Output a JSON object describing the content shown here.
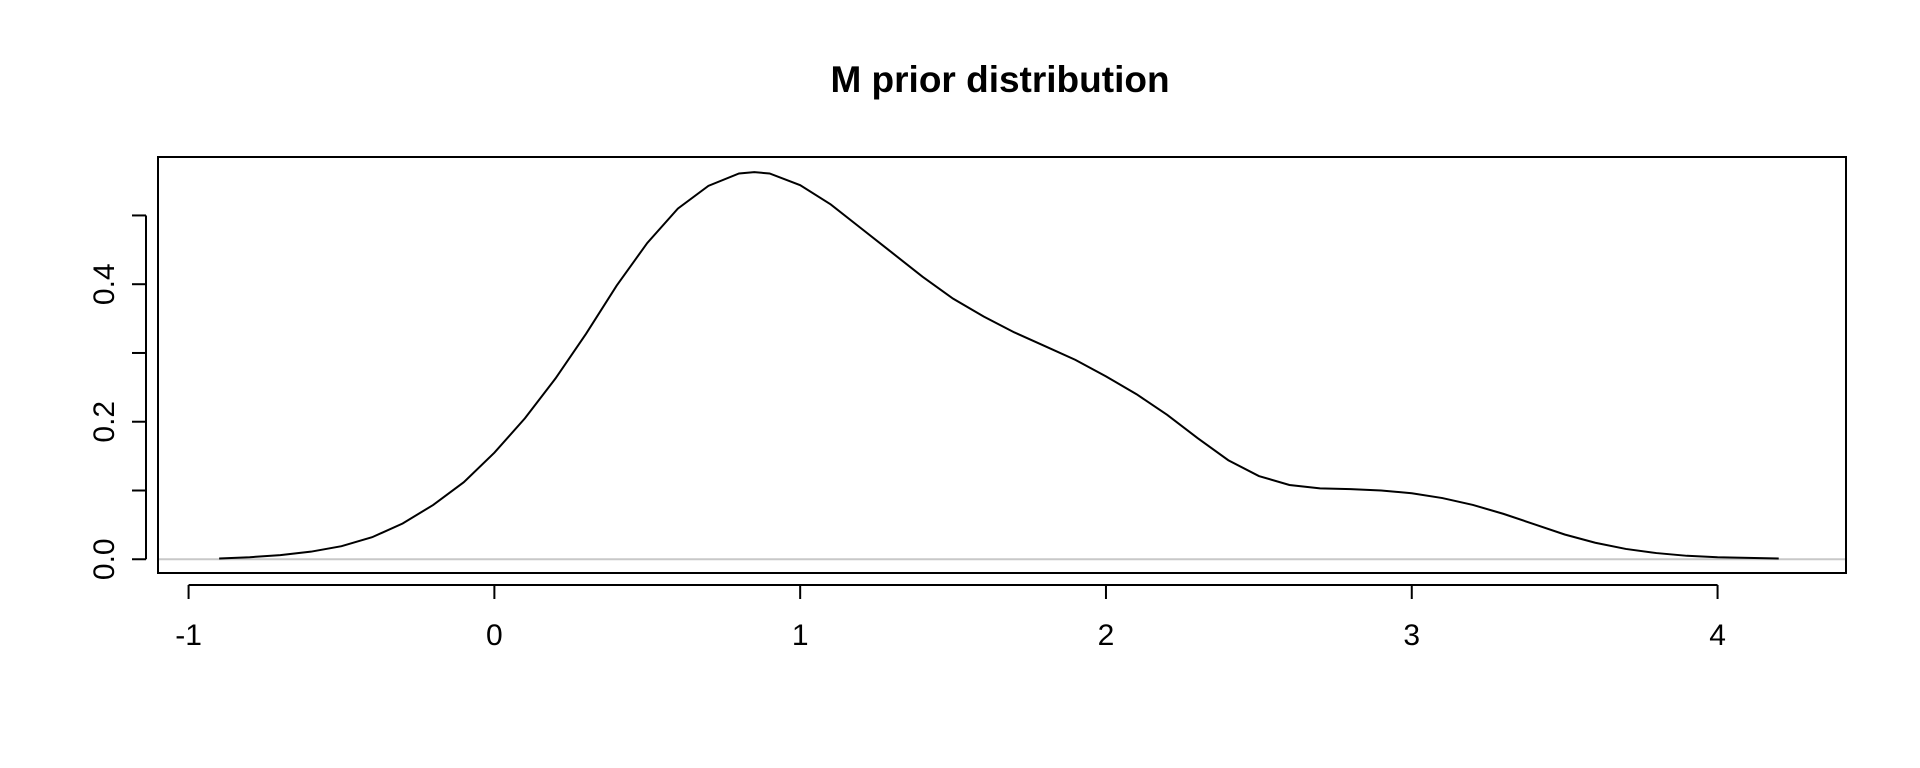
{
  "chart_data": {
    "type": "line",
    "title": "M prior distribution",
    "xlabel": "",
    "ylabel": "",
    "xlim": [
      -1.1,
      4.42
    ],
    "ylim": [
      -0.02,
      0.585
    ],
    "x_ticks": [
      -1,
      0,
      1,
      2,
      3,
      4
    ],
    "x_tick_labels": [
      "-1",
      "0",
      "1",
      "2",
      "3",
      "4"
    ],
    "y_ticks": [
      0.0,
      0.1,
      0.2,
      0.3,
      0.4,
      0.5
    ],
    "y_tick_labels": [
      "0.0",
      "",
      "0.2",
      "",
      "0.4",
      ""
    ],
    "horizontal_reference_line": 0,
    "grid": false,
    "series": [
      {
        "x": [
          -0.9,
          -0.8,
          -0.7,
          -0.6,
          -0.5,
          -0.4,
          -0.3,
          -0.2,
          -0.1,
          0.0,
          0.1,
          0.2,
          0.3,
          0.4,
          0.5,
          0.6,
          0.7,
          0.8,
          0.85,
          0.9,
          1.0,
          1.1,
          1.2,
          1.3,
          1.4,
          1.5,
          1.6,
          1.7,
          1.8,
          1.9,
          2.0,
          2.1,
          2.2,
          2.3,
          2.4,
          2.5,
          2.6,
          2.7,
          2.8,
          2.9,
          3.0,
          3.1,
          3.2,
          3.3,
          3.4,
          3.5,
          3.6,
          3.7,
          3.8,
          3.9,
          4.0,
          4.1,
          4.2
        ],
        "y": [
          0.001,
          0.003,
          0.006,
          0.011,
          0.019,
          0.032,
          0.052,
          0.079,
          0.112,
          0.155,
          0.205,
          0.263,
          0.328,
          0.398,
          0.46,
          0.51,
          0.543,
          0.561,
          0.563,
          0.561,
          0.544,
          0.516,
          0.481,
          0.446,
          0.411,
          0.379,
          0.353,
          0.33,
          0.31,
          0.29,
          0.266,
          0.24,
          0.21,
          0.176,
          0.144,
          0.121,
          0.108,
          0.103,
          0.102,
          0.1,
          0.096,
          0.089,
          0.079,
          0.066,
          0.051,
          0.036,
          0.024,
          0.015,
          0.009,
          0.005,
          0.003,
          0.002,
          0.001
        ]
      }
    ]
  }
}
